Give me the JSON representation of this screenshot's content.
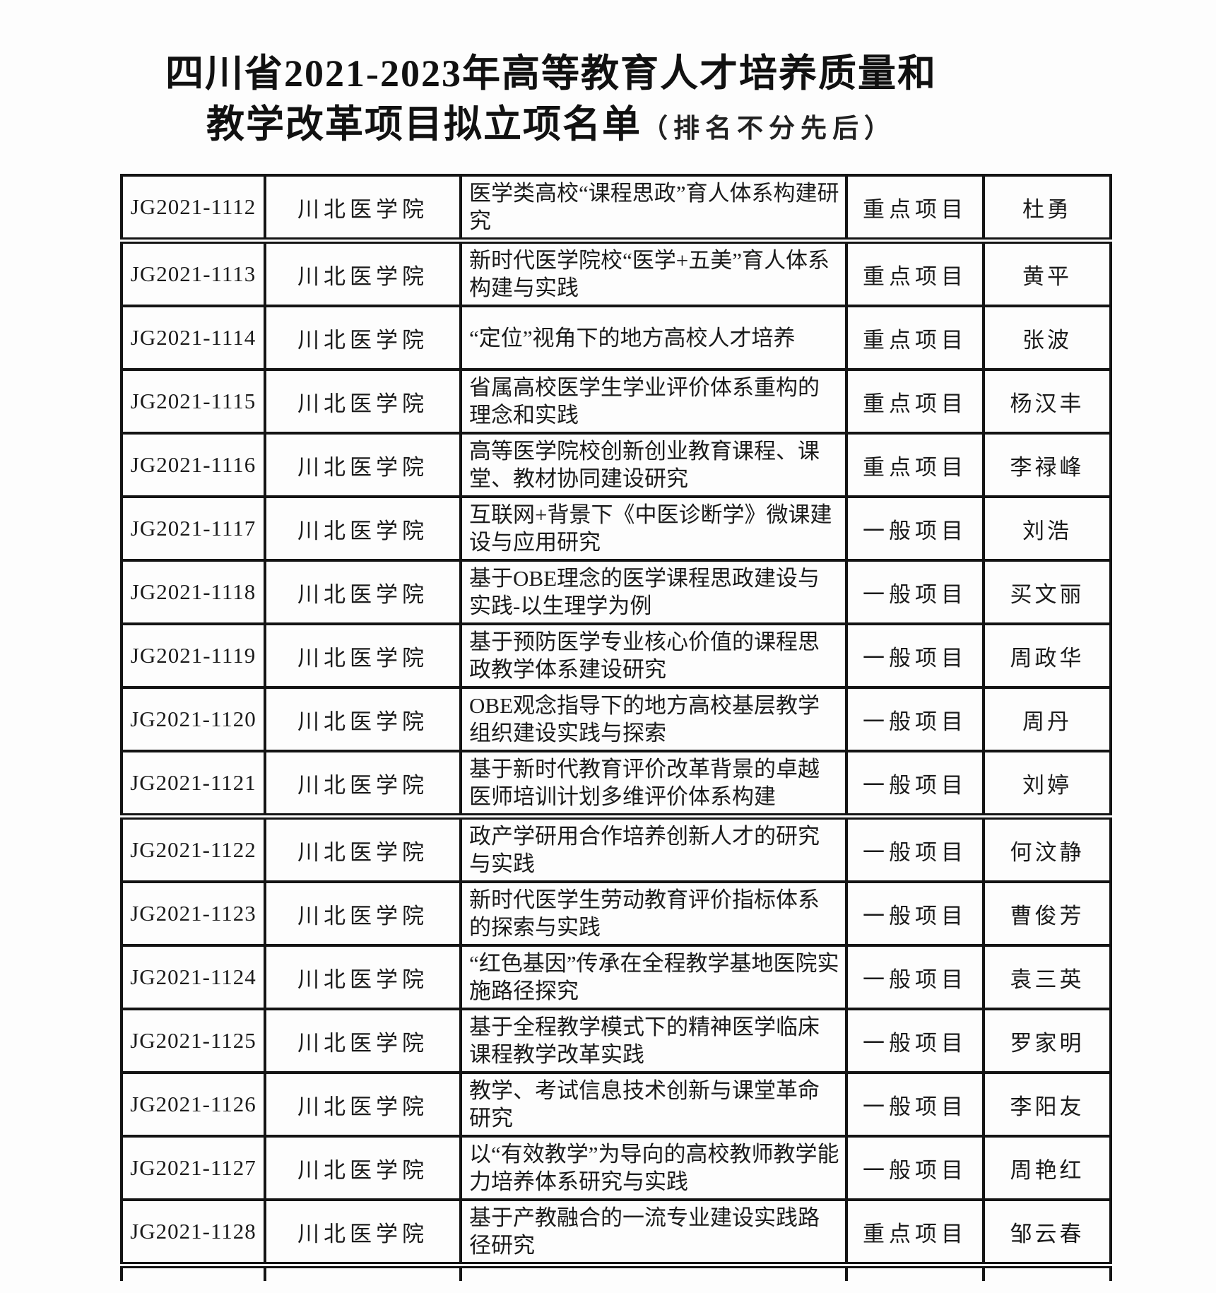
{
  "page": {
    "title_line1": "四川省2021-2023年高等教育人才培养质量和",
    "title_line2": "教学改革项目拟立项名单",
    "title_note": "（排名不分先后）"
  },
  "table": {
    "rows": [
      {
        "id": "JG2021-1112",
        "institution": "川北医学院",
        "title": "医学类高校“课程思政”育人体系构建研究",
        "type": "重点项目",
        "leader": "杜勇"
      },
      {
        "id": "JG2021-1113",
        "institution": "川北医学院",
        "title": "新时代医学院校“医学+五美”育人体系构建与实践",
        "type": "重点项目",
        "leader": "黄平"
      },
      {
        "id": "JG2021-1114",
        "institution": "川北医学院",
        "title": "“定位”视角下的地方高校人才培养",
        "type": "重点项目",
        "leader": "张波"
      },
      {
        "id": "JG2021-1115",
        "institution": "川北医学院",
        "title": "省属高校医学生学业评价体系重构的理念和实践",
        "type": "重点项目",
        "leader": "杨汉丰"
      },
      {
        "id": "JG2021-1116",
        "institution": "川北医学院",
        "title": "高等医学院校创新创业教育课程、课堂、教材协同建设研究",
        "type": "重点项目",
        "leader": "李禄峰"
      },
      {
        "id": "JG2021-1117",
        "institution": "川北医学院",
        "title": "互联网+背景下《中医诊断学》微课建设与应用研究",
        "type": "一般项目",
        "leader": "刘浩"
      },
      {
        "id": "JG2021-1118",
        "institution": "川北医学院",
        "title": "基于OBE理念的医学课程思政建设与实践-以生理学为例",
        "type": "一般项目",
        "leader": "买文丽"
      },
      {
        "id": "JG2021-1119",
        "institution": "川北医学院",
        "title": "基于预防医学专业核心价值的课程思政教学体系建设研究",
        "type": "一般项目",
        "leader": "周政华"
      },
      {
        "id": "JG2021-1120",
        "institution": "川北医学院",
        "title": "OBE观念指导下的地方高校基层教学组织建设实践与探索",
        "type": "一般项目",
        "leader": "周丹"
      },
      {
        "id": "JG2021-1121",
        "institution": "川北医学院",
        "title": "基于新时代教育评价改革背景的卓越医师培训计划多维评价体系构建",
        "type": "一般项目",
        "leader": "刘婷"
      },
      {
        "id": "JG2021-1122",
        "institution": "川北医学院",
        "title": "政产学研用合作培养创新人才的研究与实践",
        "type": "一般项目",
        "leader": "何汶静"
      },
      {
        "id": "JG2021-1123",
        "institution": "川北医学院",
        "title": "新时代医学生劳动教育评价指标体系的探索与实践",
        "type": "一般项目",
        "leader": "曹俊芳"
      },
      {
        "id": "JG2021-1124",
        "institution": "川北医学院",
        "title": "“红色基因”传承在全程教学基地医院实施路径探究",
        "type": "一般项目",
        "leader": "袁三英"
      },
      {
        "id": "JG2021-1125",
        "institution": "川北医学院",
        "title": "基于全程教学模式下的精神医学临床课程教学改革实践",
        "type": "一般项目",
        "leader": "罗家明"
      },
      {
        "id": "JG2021-1126",
        "institution": "川北医学院",
        "title": "教学、考试信息技术创新与课堂革命研究",
        "type": "一般项目",
        "leader": "李阳友"
      },
      {
        "id": "JG2021-1127",
        "institution": "川北医学院",
        "title": "以“有效教学”为导向的高校教师教学能力培养体系研究与实践",
        "type": "一般项目",
        "leader": "周艳红"
      },
      {
        "id": "JG2021-1128",
        "institution": "川北医学院",
        "title": "基于产教融合的一流专业建设实践路径研究",
        "type": "重点项目",
        "leader": "邹云春"
      }
    ]
  }
}
